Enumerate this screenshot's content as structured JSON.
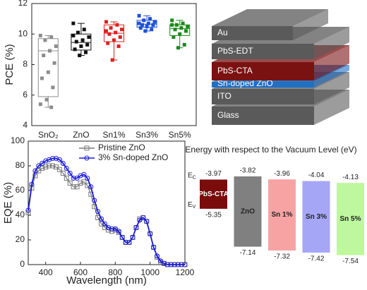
{
  "chart_data": [
    {
      "type": "box",
      "y_label": "PCE (%)",
      "categories": [
        "SnO₂",
        "ZnO",
        "Sn1%",
        "Sn3%",
        "Sn5%"
      ],
      "ylim": [
        4,
        12
      ],
      "yticks": [
        4,
        6,
        8,
        10,
        12
      ],
      "boxes": [
        {
          "color": "#8c8c8c",
          "min": 5.2,
          "q1": 5.9,
          "median": 8.9,
          "q3": 9.7,
          "max": 9.9,
          "points": [
            9.9,
            9.8,
            9.6,
            9.2,
            8.9,
            8.6,
            8.1,
            7.5,
            7.1,
            6.5,
            5.7,
            5.4,
            5.2
          ]
        },
        {
          "color": "#111111",
          "min": 8.6,
          "q1": 8.95,
          "median": 9.45,
          "q3": 10.0,
          "max": 10.7,
          "points": [
            10.7,
            10.3,
            10.1,
            9.8,
            9.6,
            9.5,
            9.3,
            9.2,
            9.0,
            8.8,
            8.6,
            9.9
          ]
        },
        {
          "color": "#e02020",
          "min": 8.3,
          "q1": 9.5,
          "median": 10.05,
          "q3": 10.6,
          "max": 10.8,
          "points": [
            10.8,
            10.6,
            10.4,
            10.3,
            10.1,
            10.0,
            9.8,
            9.6,
            9.4,
            9.2,
            8.3,
            10.2
          ]
        },
        {
          "color": "#1e50d8",
          "min": 10.2,
          "q1": 10.45,
          "median": 10.65,
          "q3": 10.9,
          "max": 11.2,
          "points": [
            11.2,
            11.0,
            10.9,
            10.8,
            10.7,
            10.6,
            10.6,
            10.5,
            10.4,
            10.3,
            10.2,
            10.7
          ]
        },
        {
          "color": "#1a8a1a",
          "min": 9.1,
          "q1": 9.9,
          "median": 10.35,
          "q3": 10.6,
          "max": 10.9,
          "points": [
            10.9,
            10.7,
            10.6,
            10.5,
            10.4,
            10.3,
            10.2,
            10.0,
            9.8,
            9.3,
            9.1,
            10.6
          ]
        }
      ]
    },
    {
      "type": "line",
      "x_label": "Wavelength (nm)",
      "y_label": "EQE (%)",
      "xlim": [
        300,
        1200
      ],
      "xticks": [
        400,
        600,
        800,
        1000,
        1200
      ],
      "ylim": [
        0,
        100
      ],
      "yticks": [
        0,
        20,
        40,
        60,
        80,
        100
      ],
      "legend": "top-right",
      "x": [
        300,
        320,
        340,
        360,
        380,
        400,
        420,
        440,
        460,
        480,
        500,
        520,
        540,
        560,
        580,
        600,
        620,
        640,
        660,
        680,
        700,
        720,
        740,
        760,
        780,
        800,
        820,
        840,
        860,
        880,
        900,
        920,
        940,
        960,
        980,
        1000,
        1020,
        1040,
        1060,
        1080,
        1100,
        1120,
        1140,
        1160,
        1180,
        1200
      ],
      "series": [
        {
          "name": "Pristine ZnO",
          "color": "#7a7a7a",
          "marker": "square",
          "values": [
            42,
            62,
            72,
            76,
            78,
            79,
            80,
            80,
            79,
            77,
            74,
            70,
            66,
            63,
            63,
            66,
            67,
            64,
            57,
            47,
            38,
            33,
            30,
            28,
            27,
            28,
            26,
            22,
            18,
            18,
            22,
            30,
            37,
            38,
            35,
            25,
            14,
            6,
            2,
            1,
            0,
            0,
            0,
            0,
            0,
            0
          ]
        },
        {
          "name": "3% Sn-doped ZnO",
          "color": "#1a1ad8",
          "marker": "circle",
          "values": [
            44,
            65,
            76,
            80,
            82,
            84,
            85,
            86,
            86,
            85,
            82,
            78,
            74,
            70,
            70,
            72,
            73,
            70,
            63,
            52,
            43,
            37,
            33,
            30,
            29,
            29,
            27,
            22,
            18,
            18,
            22,
            30,
            36,
            38,
            35,
            25,
            14,
            7,
            3,
            1,
            0,
            0,
            0,
            0,
            0,
            0
          ]
        }
      ]
    },
    {
      "type": "energy",
      "title": "Energy with respect to the Vacuum Level (eV)",
      "band_edge_labels": [
        {
          "symbol": "E",
          "subscript": "C"
        },
        {
          "symbol": "E",
          "subscript": "V"
        }
      ],
      "categories": [
        "PbS-CTA",
        "ZnO",
        "Sn 1%",
        "Sn 3%",
        "Sn 5%"
      ],
      "colors": [
        "#7a0c0c",
        "#808080",
        "#f7a3a3",
        "#a6a6f7",
        "#bdf79e"
      ],
      "conduction": [
        -3.97,
        -3.82,
        -3.96,
        -4.04,
        -4.13
      ],
      "valence": [
        -5.35,
        -7.14,
        -7.32,
        -7.42,
        -7.54
      ]
    }
  ],
  "device_stack": {
    "layers": [
      "Au",
      "PbS-EDT",
      "PbS-CTA",
      "Sn-doped ZnO",
      "ITO",
      "Glass"
    ]
  }
}
